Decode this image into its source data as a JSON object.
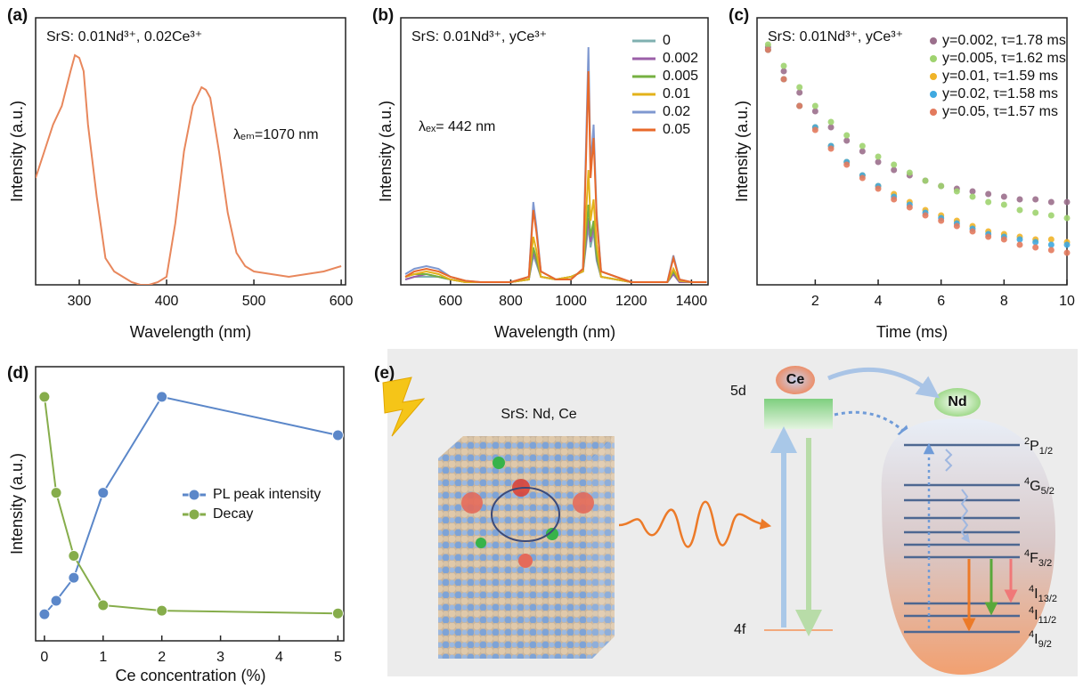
{
  "chart_data": [
    {
      "type": "line",
      "label": "(a)",
      "title": "SrS: 0.01Nd³⁺, 0.02Ce³⁺",
      "annotation": "λₑₘ=1070 nm",
      "xlabel": "Wavelength (nm)",
      "ylabel": "Intensity (a.u.)",
      "x": [
        250,
        260,
        270,
        280,
        290,
        295,
        300,
        305,
        310,
        320,
        330,
        340,
        350,
        360,
        370,
        380,
        390,
        400,
        410,
        420,
        430,
        440,
        445,
        450,
        460,
        470,
        480,
        490,
        500,
        520,
        540,
        560,
        580,
        600
      ],
      "series": [
        {
          "color": "#e8875c",
          "values": [
            40,
            50,
            60,
            67,
            80,
            86,
            85,
            80,
            60,
            33,
            10,
            5,
            3,
            1,
            0,
            0,
            1,
            3,
            23,
            50,
            67,
            74,
            73,
            70,
            50,
            27,
            12,
            7,
            5,
            4,
            3,
            4,
            5,
            7
          ]
        }
      ],
      "xlim": [
        250,
        605
      ],
      "ylim": [
        0,
        100
      ],
      "xticks": [
        300,
        400,
        500,
        600
      ]
    },
    {
      "type": "line",
      "label": "(b)",
      "title": "SrS: 0.01Nd³⁺, yCe³⁺",
      "annotation": "λₑₓ= 442 nm",
      "xlabel": "Wavelength (nm)",
      "ylabel": "Intensity (a.u.)",
      "legend": "upper right",
      "x": [
        450,
        480,
        520,
        560,
        600,
        650,
        700,
        800,
        860,
        875,
        885,
        900,
        950,
        1000,
        1040,
        1058,
        1065,
        1075,
        1085,
        1100,
        1200,
        1320,
        1340,
        1360,
        1400,
        1450
      ],
      "series": [
        {
          "name": "0",
          "color": "#7fb0b0",
          "values": [
            2,
            3,
            3,
            3,
            2,
            1,
            1,
            1,
            2,
            11,
            8,
            3,
            2,
            3,
            5,
            22,
            14,
            20,
            9,
            3,
            1,
            1,
            4,
            1,
            1,
            1
          ]
        },
        {
          "name": "0.002",
          "color": "#9b5fa8",
          "values": [
            2,
            3,
            4,
            3,
            2,
            1,
            1,
            1,
            2,
            12,
            9,
            3,
            2,
            3,
            5,
            25,
            16,
            22,
            10,
            3,
            1,
            1,
            4,
            1,
            1,
            1
          ]
        },
        {
          "name": "0.005",
          "color": "#76b041",
          "values": [
            3,
            4,
            4,
            3,
            2,
            1,
            1,
            1,
            2,
            14,
            10,
            3,
            2,
            3,
            5,
            30,
            18,
            24,
            11,
            3,
            1,
            1,
            5,
            1.5,
            1,
            1
          ]
        },
        {
          "name": "0.01",
          "color": "#e3b21a",
          "values": [
            3,
            4,
            5,
            4,
            2,
            1,
            1,
            1,
            2,
            18,
            13,
            3,
            2,
            3,
            5,
            43,
            24,
            32,
            15,
            3,
            1,
            1,
            6,
            1.5,
            1,
            1
          ]
        },
        {
          "name": "0.02",
          "color": "#7f98d0",
          "values": [
            4,
            6,
            7,
            6,
            3,
            1.5,
            1,
            1,
            3,
            31,
            22,
            5,
            2,
            2,
            6,
            89,
            44,
            60,
            27,
            5,
            1,
            1,
            11,
            2,
            1,
            1
          ]
        },
        {
          "name": "0.05",
          "color": "#e8692a",
          "values": [
            3,
            5,
            6,
            5,
            3,
            1.5,
            1,
            1,
            3,
            28,
            20,
            5,
            2,
            2,
            6,
            80,
            40,
            55,
            25,
            5,
            1,
            1,
            10,
            2,
            1,
            1
          ]
        }
      ],
      "xlim": [
        435,
        1455
      ],
      "ylim": [
        0,
        100
      ],
      "xticks": [
        600,
        800,
        1000,
        1200,
        1400
      ]
    },
    {
      "type": "scatter",
      "label": "(c)",
      "title": "SrS: 0.01Nd³⁺, yCe³⁺",
      "xlabel": "Time (ms)",
      "ylabel": "Intensity (a.u.)",
      "legend": "upper right",
      "x": [
        0.5,
        1,
        1.5,
        2,
        2.5,
        3,
        3.5,
        4,
        4.5,
        5,
        5.5,
        6,
        6.5,
        7,
        7.5,
        8,
        8.5,
        9,
        9.5,
        10
      ],
      "series": [
        {
          "name": "y=0.002, τ=1.78 ms",
          "color": "#9b6f8c",
          "values": [
            89,
            80,
            72,
            65,
            59,
            54,
            50,
            46,
            43,
            41,
            39,
            37,
            36,
            35,
            34,
            33,
            32,
            32,
            31,
            31
          ]
        },
        {
          "name": "y=0.005, τ=1.62 ms",
          "color": "#9fd36f",
          "values": [
            90,
            82,
            74,
            67,
            61,
            56,
            52,
            48,
            45,
            42,
            39,
            37,
            35,
            33,
            31,
            30,
            28,
            27,
            26,
            25
          ]
        },
        {
          "name": "y=0.01, τ=1.59 ms",
          "color": "#f0b429",
          "values": [
            88,
            77,
            67,
            59,
            52,
            46,
            41,
            37,
            34,
            31,
            28,
            26,
            24,
            22,
            20,
            19,
            18,
            17,
            17,
            16
          ]
        },
        {
          "name": "y=0.02, τ=1.58 ms",
          "color": "#3fa9e0",
          "values": [
            88,
            77,
            67,
            59,
            52,
            46,
            41,
            37,
            33,
            30,
            27,
            25,
            23,
            21,
            19,
            18,
            17,
            16,
            15,
            15
          ]
        },
        {
          "name": "y=0.05, τ=1.57 ms",
          "color": "#e37a5d",
          "values": [
            88,
            77,
            67,
            58,
            51,
            45,
            40,
            36,
            32,
            29,
            26,
            24,
            22,
            20,
            18,
            17,
            15,
            14,
            13,
            12
          ]
        }
      ],
      "xlim": [
        0.15,
        10
      ],
      "ylim": [
        0,
        100
      ],
      "xticks": [
        2,
        4,
        6,
        8,
        10
      ]
    },
    {
      "type": "line",
      "label": "(d)",
      "markers": true,
      "xlabel": "Ce concentration (%)",
      "ylabel": "Intensity (a.u.)",
      "legend": "center right",
      "x": [
        0,
        0.2,
        0.5,
        1,
        2,
        5
      ],
      "series": [
        {
          "name": "PL peak intensity",
          "color": "#5b87c9",
          "values": [
            9.7,
            14.6,
            23,
            54,
            89,
            75
          ]
        },
        {
          "name": "Decay",
          "color": "#86ad4b",
          "values": [
            89,
            54,
            31,
            13,
            11,
            10
          ]
        }
      ],
      "xlim": [
        -0.15,
        5.1
      ],
      "ylim": [
        0,
        100
      ],
      "xticks": [
        0,
        1,
        2,
        3,
        4,
        5
      ]
    }
  ],
  "diagram": {
    "label": "(e)",
    "material": "SrS: Nd, Ce",
    "ce": "Ce",
    "nd": "Nd",
    "ce_levels": [
      "5d",
      "4f"
    ],
    "nd_levels": [
      {
        "sup": "2",
        "main": "P",
        "sub": "1/2"
      },
      {
        "sup": "4",
        "main": "G",
        "sub": "5/2"
      },
      {
        "sup": "4",
        "main": "F",
        "sub": "3/2"
      },
      {
        "sup": "4",
        "main": "I",
        "sub": "13/2"
      },
      {
        "sup": "4",
        "main": "I",
        "sub": "11/2"
      },
      {
        "sup": "4",
        "main": "I",
        "sub": "9/2"
      }
    ]
  }
}
